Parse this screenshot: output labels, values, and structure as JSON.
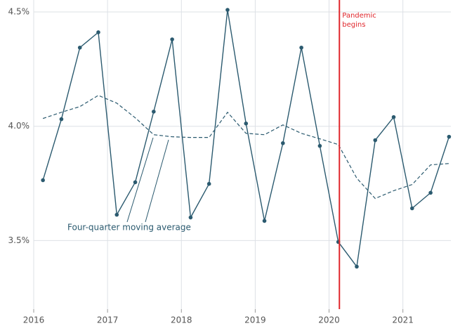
{
  "chart_data": {
    "type": "line",
    "x": [
      2016.125,
      2016.375,
      2016.625,
      2016.875,
      2017.125,
      2017.375,
      2017.625,
      2017.875,
      2018.125,
      2018.375,
      2018.625,
      2018.875,
      2019.125,
      2019.375,
      2019.625,
      2019.875,
      2020.125,
      2020.375,
      2020.625,
      2020.875,
      2021.125,
      2021.375,
      2021.625
    ],
    "series": [
      {
        "color": "#2b5a6f",
        "style": "solid",
        "markers": true,
        "values": [
          3.764,
          4.031,
          4.344,
          4.411,
          3.613,
          3.755,
          4.064,
          4.38,
          3.601,
          3.748,
          4.509,
          4.012,
          3.586,
          3.926,
          4.344,
          3.914,
          3.494,
          3.386,
          3.939,
          4.04,
          3.641,
          3.709,
          3.954
        ]
      },
      {
        "name": "Four-quarter moving average",
        "color": "#2b5a6f",
        "style": "dashed",
        "markers": false,
        "values": [
          4.034,
          4.061,
          4.086,
          4.135,
          4.101,
          4.037,
          3.963,
          3.954,
          3.951,
          3.951,
          4.061,
          3.969,
          3.963,
          4.006,
          3.969,
          3.945,
          3.92,
          3.773,
          3.684,
          3.718,
          3.745,
          3.831,
          3.837
        ]
      }
    ],
    "xlim": [
      2016,
      2021.65
    ],
    "xticks": [
      2016,
      2017,
      2018,
      2019,
      2020,
      2021
    ],
    "ylim": [
      3.2,
      4.5
    ],
    "yticks": [
      {
        "value": 3.5,
        "label": "3.5%"
      },
      {
        "value": 4.0,
        "label": "4.0%"
      },
      {
        "value": 4.5,
        "label": "4.5%"
      }
    ],
    "grid": true,
    "event": {
      "x": 2020.14,
      "color": "#e0262b",
      "text": [
        "Pandemic",
        "begins"
      ]
    }
  }
}
